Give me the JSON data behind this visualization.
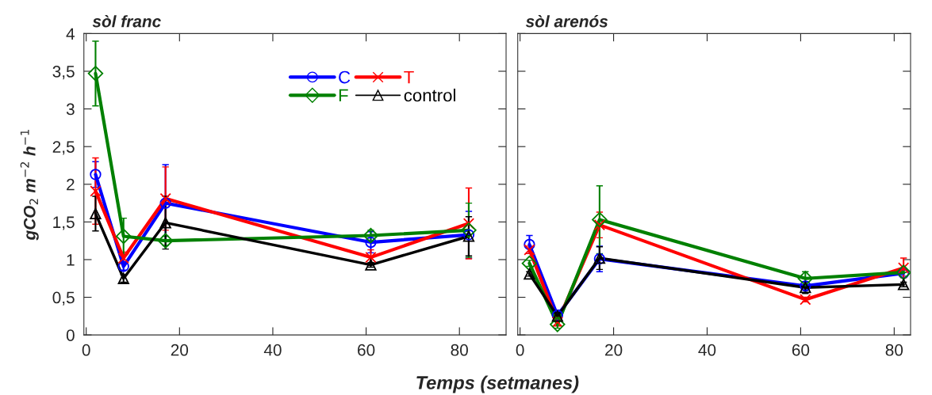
{
  "chart_data": [
    {
      "type": "line",
      "title": "sòl franc",
      "xlabel": "Temps (setmanes)",
      "ylabel": "gCO$_{2}$ m$^{−2}$ h$^{−1}$",
      "x": [
        2,
        8,
        17,
        61,
        82
      ],
      "xlim": [
        -0.5,
        90
      ],
      "xticks": [
        0,
        20,
        40,
        60,
        80
      ],
      "ylim": [
        0,
        4
      ],
      "yticks": [
        0,
        {
          "value": 0.5,
          "label": "0,5"
        },
        1,
        {
          "value": 1.5,
          "label": "1,5"
        },
        2,
        {
          "value": 2.5,
          "label": "2,5"
        },
        3,
        {
          "value": 3.5,
          "label": "3,5"
        },
        4
      ],
      "legend": "top right",
      "grid": false,
      "series": [
        {
          "name": "C",
          "color": "#0000ff",
          "marker": "circle",
          "values": [
            2.13,
            0.91,
            1.75,
            1.23,
            1.33
          ],
          "errors": [
            0.17,
            0.05,
            0.51,
            0.14,
            0.31
          ]
        },
        {
          "name": "T",
          "color": "#ff0000",
          "marker": "cross",
          "values": [
            1.91,
            1.02,
            1.81,
            1.03,
            1.48
          ],
          "errors": [
            0.44,
            0.08,
            0.42,
            0.1,
            0.47
          ]
        },
        {
          "name": "F",
          "color": "#008000",
          "marker": "diamond",
          "values": [
            3.47,
            1.31,
            1.25,
            1.32,
            1.39
          ],
          "errors": [
            0.43,
            0.24,
            0.06,
            0.07,
            0.36
          ]
        },
        {
          "name": "control",
          "color": "#000000",
          "marker": "triangle",
          "values": [
            1.61,
            0.75,
            1.49,
            0.93,
            1.31
          ],
          "errors": [
            0.23,
            0.05,
            0.35,
            0.03,
            0.26
          ]
        }
      ]
    },
    {
      "type": "line",
      "title": "sòl arenós",
      "x": [
        2,
        8,
        17,
        61,
        82
      ],
      "xlim": [
        -0.5,
        83.5
      ],
      "xticks": [
        0,
        20,
        40,
        60,
        80
      ],
      "ylim": [
        0,
        4
      ],
      "yticks": [
        0,
        0.5,
        1,
        1.5,
        2,
        2.5,
        3,
        3.5,
        4
      ],
      "tick_labels": "x",
      "grid": false,
      "series": [
        {
          "color": "#0000ff",
          "marker": "circle",
          "values": [
            1.2,
            0.26,
            1.01,
            0.65,
            0.82
          ],
          "errors": [
            0.12,
            0.07,
            0.17,
            0.05,
            0.04
          ]
        },
        {
          "color": "#ff0000",
          "marker": "cross",
          "values": [
            1.13,
            0.17,
            1.46,
            0.47,
            0.89
          ],
          "errors": [
            0.05,
            0.05,
            0.17,
            0.03,
            0.13
          ]
        },
        {
          "color": "#008000",
          "marker": "diamond",
          "values": [
            0.95,
            0.14,
            1.53,
            0.75,
            0.83
          ],
          "errors": [
            0.04,
            0.05,
            0.45,
            0.09,
            null
          ]
        },
        {
          "color": "#000000",
          "marker": "triangle",
          "values": [
            0.81,
            0.25,
            1.02,
            0.63,
            0.67
          ],
          "errors": [
            0.03,
            0.04,
            0.15,
            0.08,
            0.03
          ]
        }
      ]
    }
  ]
}
